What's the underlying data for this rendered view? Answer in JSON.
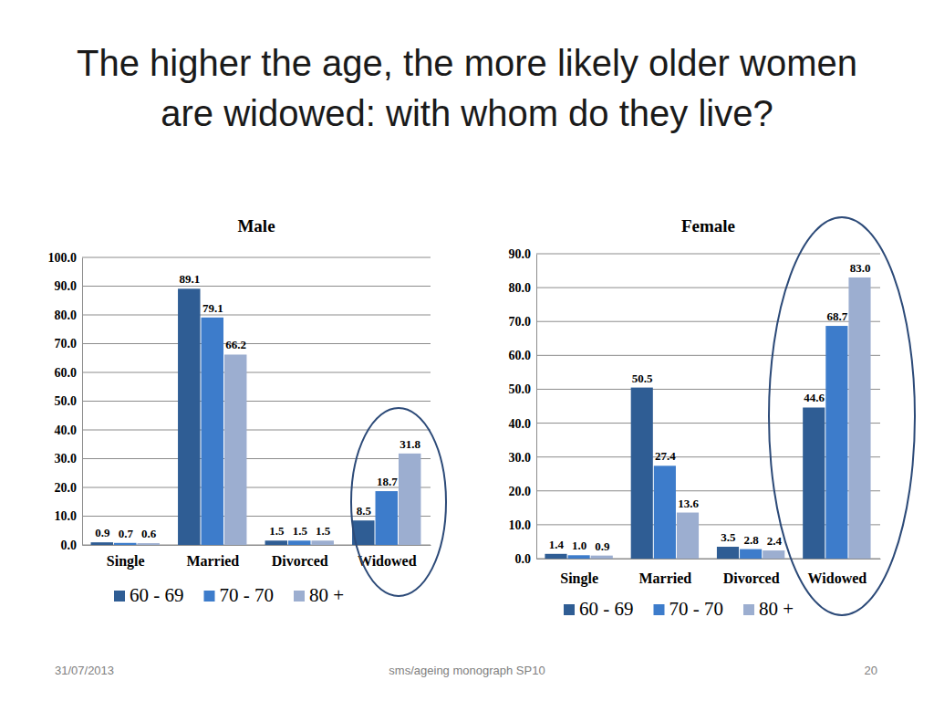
{
  "slide": {
    "title": "The higher the age, the more likely older women are widowed: with whom do they live?",
    "footer": {
      "date": "31/07/2013",
      "source": "sms/ageing monograph SP10",
      "page": "20"
    }
  },
  "chart_data": [
    {
      "type": "bar",
      "title": "Male",
      "categories": [
        "Single",
        "Married",
        "Divorced",
        "Widowed"
      ],
      "series": [
        {
          "name": "60 - 69",
          "color": "#2f5d94",
          "values": [
            0.9,
            89.1,
            1.5,
            8.5
          ],
          "value_labels": [
            "0.9",
            "89.1",
            "1.5",
            "8.5"
          ]
        },
        {
          "name": "70 - 70",
          "color": "#3d7ccb",
          "values": [
            0.7,
            79.1,
            1.5,
            18.7
          ],
          "value_labels": [
            "0.7",
            "79.1",
            "1.5",
            "18.7"
          ]
        },
        {
          "name": "80 +",
          "color": "#9caed0",
          "values": [
            0.6,
            66.2,
            1.5,
            31.8
          ],
          "value_labels": [
            "0.6",
            "66.2",
            "1.5",
            "31.8"
          ]
        }
      ],
      "ylim": [
        0,
        100
      ],
      "yticks": [
        {
          "value": 0,
          "label": "0.0"
        },
        {
          "value": 10,
          "label": "10.0"
        },
        {
          "value": 20,
          "label": "20.0"
        },
        {
          "value": 30,
          "label": "30.0"
        },
        {
          "value": 40,
          "label": "40.0"
        },
        {
          "value": 50,
          "label": "50.0"
        },
        {
          "value": 60,
          "label": "60.0"
        },
        {
          "value": 70,
          "label": "70.0"
        },
        {
          "value": 80,
          "label": "80.0"
        },
        {
          "value": 90,
          "label": "90.0"
        },
        {
          "value": 100,
          "label": "100.0"
        }
      ],
      "grid": true,
      "legend": "bottom",
      "data_labels": true
    },
    {
      "type": "bar",
      "title": "Female",
      "categories": [
        "Single",
        "Married",
        "Divorced",
        "Widowed"
      ],
      "series": [
        {
          "name": "60 - 69",
          "color": "#2f5d94",
          "values": [
            1.4,
            50.5,
            3.5,
            44.6
          ],
          "value_labels": [
            "1.4",
            "50.5",
            "3.5",
            "44.6"
          ]
        },
        {
          "name": "70 - 70",
          "color": "#3d7ccb",
          "values": [
            1.0,
            27.4,
            2.8,
            68.7
          ],
          "value_labels": [
            "1.0",
            "27.4",
            "2.8",
            "68.7"
          ]
        },
        {
          "name": "80 +",
          "color": "#9caed0",
          "values": [
            0.9,
            13.6,
            2.4,
            83.0
          ],
          "value_labels": [
            "0.9",
            "13.6",
            "2.4",
            "83.0"
          ]
        }
      ],
      "ylim": [
        0,
        90
      ],
      "yticks": [
        {
          "value": 0,
          "label": "0.0"
        },
        {
          "value": 10,
          "label": "10.0"
        },
        {
          "value": 20,
          "label": "20.0"
        },
        {
          "value": 30,
          "label": "30.0"
        },
        {
          "value": 40,
          "label": "40.0"
        },
        {
          "value": 50,
          "label": "50.0"
        },
        {
          "value": 60,
          "label": "60.0"
        },
        {
          "value": 70,
          "label": "70.0"
        },
        {
          "value": 80,
          "label": "80.0"
        },
        {
          "value": 90,
          "label": "90.0"
        }
      ],
      "grid": true,
      "legend": "bottom",
      "data_labels": true
    }
  ]
}
